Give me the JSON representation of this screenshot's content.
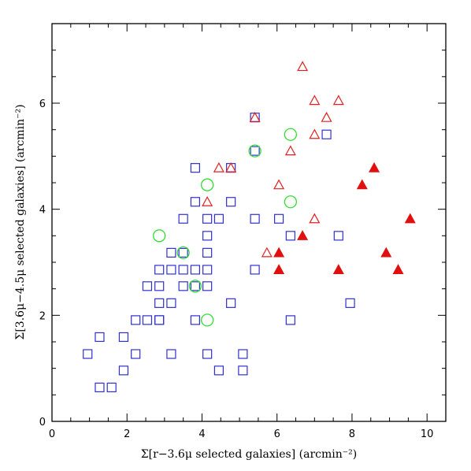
{
  "chart_data": {
    "type": "scatter",
    "xlabel": "Σ[r−3.6μ selected galaxies]  (arcmin⁻²)",
    "ylabel": "Σ[3.6μ−4.5μ selected galaxies]  (arcmin⁻²)",
    "xlim": [
      0,
      10.5
    ],
    "ylim": [
      0,
      7.5
    ],
    "x_ticks": [
      0,
      2,
      4,
      6,
      8,
      10
    ],
    "y_ticks": [
      0,
      2,
      4,
      6
    ],
    "grid": false,
    "legend": "none",
    "series": [
      {
        "marker": "open-square",
        "color": "#3030d0",
        "points": [
          [
            0.95,
            1.27
          ],
          [
            1.27,
            1.59
          ],
          [
            1.27,
            0.64
          ],
          [
            1.59,
            0.64
          ],
          [
            1.91,
            1.59
          ],
          [
            1.91,
            0.96
          ],
          [
            2.23,
            1.27
          ],
          [
            2.23,
            1.91
          ],
          [
            2.54,
            2.55
          ],
          [
            2.54,
            1.91
          ],
          [
            2.86,
            2.86
          ],
          [
            2.86,
            2.55
          ],
          [
            2.86,
            2.23
          ],
          [
            2.86,
            1.91
          ],
          [
            2.86,
            1.91
          ],
          [
            3.18,
            3.18
          ],
          [
            3.18,
            2.86
          ],
          [
            3.18,
            2.23
          ],
          [
            3.18,
            1.27
          ],
          [
            3.5,
            3.82
          ],
          [
            3.5,
            3.18
          ],
          [
            3.5,
            2.86
          ],
          [
            3.5,
            2.55
          ],
          [
            3.82,
            4.78
          ],
          [
            3.82,
            4.14
          ],
          [
            3.82,
            2.86
          ],
          [
            3.82,
            2.55
          ],
          [
            3.82,
            1.91
          ],
          [
            4.14,
            3.82
          ],
          [
            4.14,
            3.5
          ],
          [
            4.14,
            3.18
          ],
          [
            4.14,
            2.86
          ],
          [
            4.14,
            2.55
          ],
          [
            4.14,
            1.27
          ],
          [
            4.45,
            3.82
          ],
          [
            4.45,
            0.96
          ],
          [
            4.77,
            4.78
          ],
          [
            4.77,
            4.14
          ],
          [
            4.77,
            2.23
          ],
          [
            5.09,
            1.27
          ],
          [
            5.09,
            0.96
          ],
          [
            5.41,
            5.73
          ],
          [
            5.41,
            5.1
          ],
          [
            5.41,
            3.82
          ],
          [
            5.41,
            2.86
          ],
          [
            6.05,
            3.82
          ],
          [
            6.36,
            3.5
          ],
          [
            6.36,
            1.91
          ],
          [
            7.32,
            5.41
          ],
          [
            7.64,
            3.5
          ],
          [
            7.95,
            2.23
          ]
        ]
      },
      {
        "marker": "open-circle",
        "color": "#33dd33",
        "points": [
          [
            2.86,
            3.5
          ],
          [
            3.5,
            3.18
          ],
          [
            3.82,
            2.55
          ],
          [
            4.14,
            4.46
          ],
          [
            4.14,
            1.91
          ],
          [
            5.41,
            5.1
          ],
          [
            6.36,
            5.41
          ],
          [
            6.36,
            4.14
          ]
        ]
      },
      {
        "marker": "open-triangle",
        "color": "#e02020",
        "points": [
          [
            4.14,
            4.14
          ],
          [
            4.45,
            4.78
          ],
          [
            4.77,
            4.78
          ],
          [
            5.41,
            5.73
          ],
          [
            5.73,
            3.18
          ],
          [
            6.05,
            4.46
          ],
          [
            6.36,
            5.1
          ],
          [
            6.68,
            6.69
          ],
          [
            7.0,
            6.05
          ],
          [
            7.0,
            5.41
          ],
          [
            7.0,
            3.82
          ],
          [
            7.32,
            5.73
          ],
          [
            7.64,
            6.05
          ]
        ]
      },
      {
        "marker": "filled-triangle",
        "color": "#e01010",
        "points": [
          [
            6.05,
            3.18
          ],
          [
            6.05,
            2.86
          ],
          [
            6.68,
            3.5
          ],
          [
            7.64,
            2.86
          ],
          [
            8.27,
            4.46
          ],
          [
            8.59,
            4.78
          ],
          [
            8.91,
            3.18
          ],
          [
            9.23,
            2.86
          ],
          [
            9.55,
            3.82
          ]
        ]
      }
    ]
  }
}
